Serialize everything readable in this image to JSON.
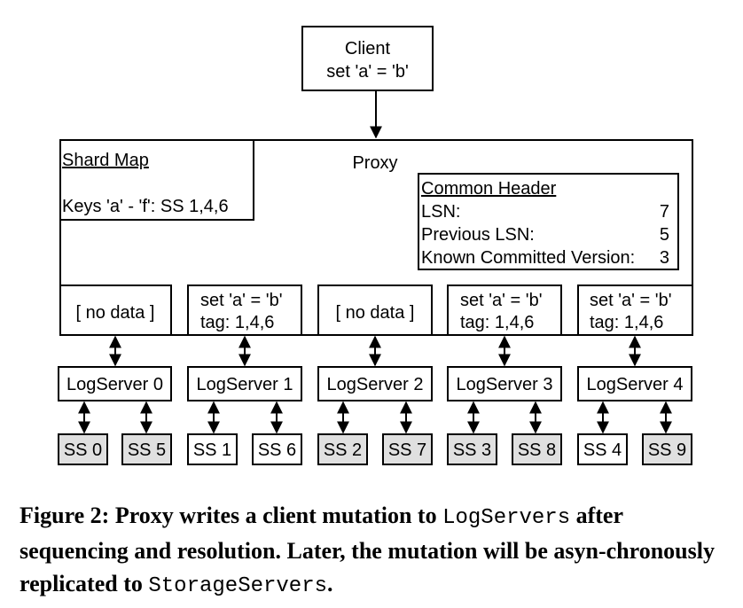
{
  "colors": {
    "stroke": "#000000",
    "ss_gray": "#e0e0e0",
    "ss_white": "#ffffff"
  },
  "client": {
    "line1": "Client",
    "line2": "set 'a' = 'b'"
  },
  "proxy": {
    "title": "Proxy",
    "shard_map": {
      "title": "Shard Map",
      "keys": "Keys 'a' - 'f': SS 1,4,6"
    },
    "common_header": {
      "title": "Common Header",
      "rows": [
        {
          "label": "LSN:",
          "value": "7"
        },
        {
          "label": "Previous LSN:",
          "value": "5"
        },
        {
          "label": "Known Committed Version:",
          "value": "3"
        }
      ]
    },
    "buffers": [
      {
        "line1": "[ no data ]",
        "line2": ""
      },
      {
        "line1": "set 'a' = 'b'",
        "line2": "tag: 1,4,6"
      },
      {
        "line1": "[ no data ]",
        "line2": ""
      },
      {
        "line1": "set 'a' = 'b'",
        "line2": "tag: 1,4,6"
      },
      {
        "line1": "set 'a' = 'b'",
        "line2": "tag: 1,4,6"
      }
    ]
  },
  "logservers": [
    "LogServer 0",
    "LogServer 1",
    "LogServer 2",
    "LogServer 3",
    "LogServer 4"
  ],
  "storage_servers": [
    {
      "label": "SS 0",
      "tagged": false
    },
    {
      "label": "SS 5",
      "tagged": false
    },
    {
      "label": "SS 1",
      "tagged": true
    },
    {
      "label": "SS 6",
      "tagged": true
    },
    {
      "label": "SS 2",
      "tagged": false
    },
    {
      "label": "SS 7",
      "tagged": false
    },
    {
      "label": "SS 3",
      "tagged": false
    },
    {
      "label": "SS 8",
      "tagged": false
    },
    {
      "label": "SS 4",
      "tagged": true
    },
    {
      "label": "SS 9",
      "tagged": false
    }
  ],
  "caption": {
    "part1": "Figure 2: Proxy writes a client mutation to ",
    "code1": "LogServers",
    "part2": " after sequencing and resolution. Later, the mutation will be asyn-chronously replicated to ",
    "code2": "StorageServers",
    "part3": "."
  }
}
